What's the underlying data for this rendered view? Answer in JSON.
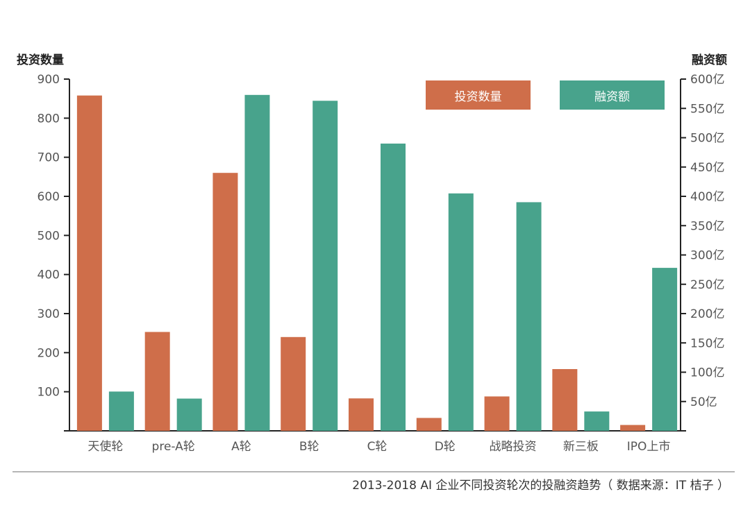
{
  "colors": {
    "orange": "#CF6E4A",
    "teal": "#48A38C",
    "axis": "#222222",
    "tick_text": "#555555"
  },
  "left_axis_title": "投资数量",
  "right_axis_title": "融资额",
  "caption": "2013-2018 AI 企业不同投资轮次的投融资趋势（ 数据来源：IT 桔子 ）",
  "legend": [
    {
      "label": "投资数量",
      "color": "#CF6E4A"
    },
    {
      "label": "融资额",
      "color": "#48A38C"
    }
  ],
  "chart_data": {
    "type": "bar",
    "categories": [
      "天使轮",
      "pre-A轮",
      "A轮",
      "B轮",
      "C轮",
      "D轮",
      "战略投资",
      "新三板",
      "IPO上市"
    ],
    "series": [
      {
        "name": "投资数量",
        "axis": "left",
        "values": [
          858,
          253,
          660,
          240,
          83,
          33,
          88,
          158,
          15
        ]
      },
      {
        "name": "融资额",
        "axis": "right",
        "values": [
          67,
          55,
          573,
          563,
          490,
          405,
          390,
          33,
          278
        ]
      }
    ],
    "left_axis": {
      "ylim": [
        0,
        900
      ],
      "ticks": [
        100,
        200,
        300,
        400,
        500,
        600,
        700,
        800,
        900
      ],
      "tick_labels": [
        "100",
        "200",
        "300",
        "400",
        "500",
        "600",
        "700",
        "800",
        "900"
      ]
    },
    "right_axis": {
      "ylim": [
        0,
        600
      ],
      "ticks": [
        50,
        100,
        150,
        200,
        250,
        300,
        350,
        400,
        450,
        500,
        550,
        600
      ],
      "tick_labels": [
        "50亿",
        "100亿",
        "150亿",
        "200亿",
        "250亿",
        "300亿",
        "350亿",
        "400亿",
        "450亿",
        "500亿",
        "550亿",
        "600亿"
      ]
    },
    "title": "",
    "grid": false,
    "legend_position": "top-right"
  }
}
